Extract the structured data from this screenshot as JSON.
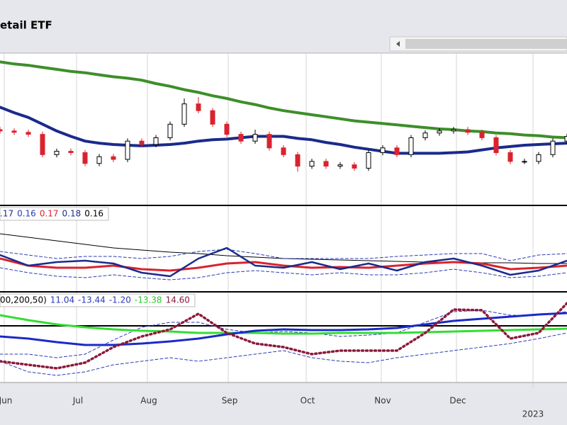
{
  "chart_data": [
    {
      "type": "candlestick",
      "title": "etail ETF",
      "open": [
        112,
        110,
        108,
        105,
        75,
        80,
        78,
        62,
        72,
        68,
        95,
        90,
        100,
        120,
        150,
        140,
        120,
        105,
        95,
        105,
        85,
        75,
        58,
        65,
        58,
        60,
        55,
        78,
        85,
        75,
        100,
        107,
        110,
        112,
        108,
        100,
        78,
        65,
        65,
        75,
        95
      ],
      "high": [
        116,
        114,
        112,
        109,
        84,
        84,
        82,
        76,
        76,
        99,
        99,
        104,
        124,
        158,
        160,
        144,
        124,
        109,
        112,
        109,
        89,
        79,
        69,
        69,
        64,
        64,
        82,
        89,
        89,
        104,
        111,
        114,
        116,
        116,
        112,
        104,
        82,
        69,
        79,
        99,
        106
      ],
      "low": [
        106,
        104,
        101,
        71,
        71,
        74,
        58,
        58,
        64,
        64,
        86,
        86,
        96,
        116,
        136,
        116,
        101,
        91,
        91,
        81,
        71,
        50,
        54,
        54,
        54,
        51,
        51,
        74,
        71,
        71,
        96,
        103,
        106,
        104,
        96,
        74,
        61,
        61,
        61,
        71,
        91
      ],
      "close": [
        110,
        108,
        105,
        75,
        80,
        78,
        62,
        72,
        68,
        95,
        90,
        100,
        120,
        150,
        140,
        120,
        105,
        95,
        105,
        85,
        75,
        58,
        65,
        58,
        60,
        55,
        78,
        85,
        75,
        100,
        107,
        110,
        112,
        108,
        100,
        78,
        65,
        65,
        75,
        95,
        102
      ],
      "up_color": "#000000",
      "down_color": "#d9232e",
      "series": [
        {
          "color": "#3e8e2a",
          "width": 4,
          "values": [
            212,
            209,
            207,
            204,
            201,
            198,
            196,
            193,
            190,
            188,
            185,
            180,
            176,
            171,
            167,
            162,
            158,
            153,
            149,
            144,
            140,
            137,
            134,
            131,
            128,
            125,
            123,
            121,
            119,
            117,
            115,
            113,
            112,
            110,
            109,
            107,
            106,
            104,
            103,
            101,
            100
          ]
        },
        {
          "color": "#1a2a8c",
          "width": 4,
          "values": [
            145,
            137,
            130,
            120,
            110,
            102,
            95,
            92,
            90,
            89,
            88,
            89,
            90,
            92,
            95,
            97,
            98,
            100,
            102,
            102,
            102,
            99,
            97,
            93,
            90,
            86,
            83,
            80,
            77,
            77,
            77,
            77,
            78,
            79,
            82,
            85,
            87,
            89,
            90,
            91,
            92
          ]
        }
      ],
      "ylim": [
        0,
        225
      ],
      "xticks": [
        {
          "value": 0.3,
          "label": "Jun"
        },
        {
          "value": 5.4,
          "label": "Jul"
        },
        {
          "value": 10.4,
          "label": "Aug"
        },
        {
          "value": 16.1,
          "label": "Sep"
        },
        {
          "value": 21.6,
          "label": "Oct"
        },
        {
          "value": 26.9,
          "label": "Nov"
        },
        {
          "value": 32.2,
          "label": "Dec"
        }
      ],
      "year_ticks": [
        {
          "value": 37.6,
          "label": "2023"
        }
      ],
      "grid": true
    },
    {
      "type": "line",
      "legend": [
        {
          "text": ".17",
          "color": "#1a2a8c"
        },
        {
          "text": "0.16",
          "color": "#2a3ab8"
        },
        {
          "text": "0.17",
          "color": "#d9232e"
        },
        {
          "text": "0.18",
          "color": "#1a2a8c"
        },
        {
          "text": "0.16",
          "color": "#000000"
        }
      ],
      "series": [
        {
          "color": "#000000",
          "width": 1,
          "values": [
            82,
            77,
            72,
            67,
            62,
            59,
            56,
            54,
            51,
            49,
            47,
            46,
            45,
            44,
            43,
            42,
            42,
            41,
            41,
            40,
            40
          ]
        },
        {
          "color": "#2a3ab8",
          "width": 1,
          "dash": "4 3",
          "values": [
            57,
            52,
            47,
            50,
            50,
            47,
            50,
            57,
            60,
            54,
            47,
            47,
            47,
            47,
            50,
            52,
            54,
            54,
            44,
            52,
            54
          ]
        },
        {
          "color": "#2a3ab8",
          "width": 1,
          "dash": "4 3",
          "values": [
            34,
            27,
            22,
            20,
            24,
            20,
            17,
            20,
            27,
            30,
            27,
            24,
            27,
            24,
            24,
            27,
            32,
            27,
            20,
            22,
            27
          ]
        },
        {
          "color": "#d9232e",
          "width": 3,
          "values": [
            47,
            37,
            34,
            34,
            37,
            32,
            30,
            34,
            40,
            42,
            37,
            34,
            35,
            34,
            37,
            40,
            42,
            40,
            32,
            34,
            37
          ]
        },
        {
          "color": "#1a2a8c",
          "width": 2.5,
          "values": [
            52,
            37,
            42,
            44,
            40,
            27,
            22,
            47,
            62,
            37,
            34,
            42,
            32,
            40,
            30,
            42,
            47,
            37,
            24,
            30,
            44
          ]
        }
      ],
      "ylim": [
        0,
        122
      ]
    },
    {
      "type": "line",
      "legend": [
        {
          "text": "00,200,50)",
          "color": "#000000"
        },
        {
          "text": "11.04",
          "color": "#2a3ab8"
        },
        {
          "text": "-13.44",
          "color": "#2a3ab8"
        },
        {
          "text": "-1.20",
          "color": "#2a3ab8"
        },
        {
          "text": "-13.38",
          "color": "#22cc22"
        },
        {
          "text": "14.60",
          "color": "#8b1a3a"
        }
      ],
      "hline": 80,
      "series": [
        {
          "color": "#2a3ab8",
          "width": 1,
          "dash": "4 3",
          "values": [
            40,
            40,
            35,
            40,
            60,
            78,
            85,
            85,
            75,
            70,
            72,
            70,
            65,
            67,
            70,
            85,
            100,
            102,
            95,
            95,
            100
          ]
        },
        {
          "color": "#2a3ab8",
          "width": 1,
          "dash": "4 3",
          "values": [
            30,
            15,
            10,
            15,
            25,
            30,
            35,
            30,
            35,
            40,
            45,
            35,
            30,
            28,
            35,
            40,
            45,
            50,
            55,
            62,
            70
          ]
        },
        {
          "color": "#33dd33",
          "width": 3,
          "values": [
            95,
            88,
            82,
            78,
            75,
            73,
            72,
            70,
            70,
            70,
            69,
            69,
            70,
            70,
            70,
            71,
            72,
            73,
            74,
            75,
            76
          ]
        },
        {
          "color": "#1a2ac8",
          "width": 3,
          "values": [
            65,
            62,
            57,
            53,
            53,
            55,
            58,
            62,
            68,
            73,
            75,
            74,
            74,
            75,
            77,
            82,
            87,
            90,
            93,
            96,
            98
          ]
        },
        {
          "color": "#8b1a3a",
          "width": 3.5,
          "dash": "2 4",
          "values": [
            30,
            25,
            20,
            28,
            50,
            65,
            75,
            97,
            70,
            55,
            50,
            40,
            45,
            45,
            45,
            70,
            103,
            102,
            62,
            70,
            112
          ]
        }
      ],
      "ylim": [
        0,
        128
      ]
    }
  ]
}
